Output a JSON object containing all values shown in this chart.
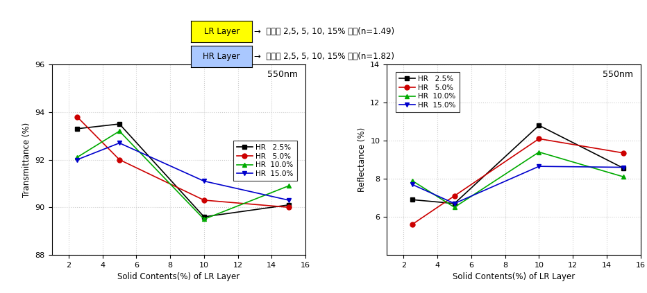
{
  "x": [
    2.5,
    5,
    10,
    15
  ],
  "trans": {
    "HR_2.5": [
      93.3,
      93.5,
      89.6,
      90.1
    ],
    "HR_5.0": [
      93.8,
      92.0,
      90.3,
      90.0
    ],
    "HR_10.0": [
      92.1,
      93.2,
      89.5,
      90.9
    ],
    "HR_15.0": [
      92.0,
      92.7,
      91.1,
      90.3
    ]
  },
  "refl": {
    "HR_2.5": [
      6.9,
      6.7,
      10.8,
      8.55
    ],
    "HR_5.0": [
      5.6,
      7.1,
      10.1,
      9.35
    ],
    "HR_10.0": [
      7.9,
      6.5,
      9.4,
      8.1
    ],
    "HR_15.0": [
      7.7,
      6.7,
      8.65,
      8.6
    ]
  },
  "colors": {
    "HR_2.5": "#000000",
    "HR_5.0": "#cc0000",
    "HR_10.0": "#00aa00",
    "HR_15.0": "#0000cc"
  },
  "markers": {
    "HR_2.5": "s",
    "HR_5.0": "o",
    "HR_10.0": "^",
    "HR_15.0": "v"
  },
  "legend_labels": {
    "HR_2.5": "HR   2.5%",
    "HR_5.0": "HR   5.0%",
    "HR_10.0": "HR  10.0%",
    "HR_15.0": "HR  15.0%"
  },
  "trans_ylim": [
    88,
    96
  ],
  "trans_yticks": [
    88,
    90,
    92,
    94,
    96
  ],
  "refl_ylim": [
    4,
    14
  ],
  "refl_yticks": [
    6,
    8,
    10,
    12,
    14
  ],
  "xlim": [
    1,
    16
  ],
  "xticks": [
    2,
    4,
    6,
    8,
    10,
    12,
    14,
    16
  ],
  "xlabel": "Solid Contents(%) of LR Layer",
  "trans_ylabel": "Transmittance (%)",
  "refl_ylabel": "Reflectance (%)",
  "annot_550nm": "550nm",
  "header_LR_label": "LR Layer",
  "header_HR_label": "HR Layer",
  "header_LR_text": "고형분 2,5, 5, 10, 15% 조절(n=1.49)",
  "header_HR_text": "고형분 2,5, 5, 10, 15% 조절(n=1.82)",
  "header_LR_color": "#ffff00",
  "header_HR_color": "#aac8ff",
  "bg_color": "#ffffff",
  "grid_color": "#cccccc"
}
